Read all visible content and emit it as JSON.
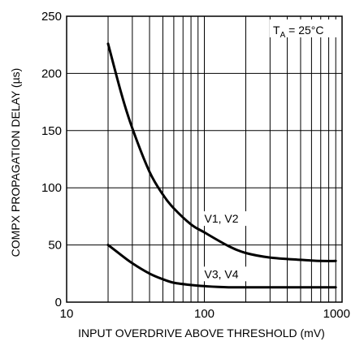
{
  "chart_data": {
    "type": "line",
    "title": "",
    "xlabel": "INPUT OVERDRIVE ABOVE THRESHOLD (mV)",
    "ylabel": "COMPX PROPAGATION DELAY (µs)",
    "xscale": "log",
    "xlim": [
      10,
      1000
    ],
    "ylim": [
      0,
      250
    ],
    "x_ticks": [
      "10",
      "100",
      "1000"
    ],
    "y_ticks": [
      "0",
      "50",
      "100",
      "150",
      "200",
      "250"
    ],
    "grid": true,
    "annotation": {
      "main": "T",
      "subscript": "A",
      "rest": " = 25°C"
    },
    "series": [
      {
        "name": "V1, V2",
        "x": [
          20,
          25,
          30,
          40,
          50,
          60,
          80,
          100,
          150,
          200,
          300,
          500,
          700,
          900
        ],
        "y": [
          226,
          182,
          152,
          114,
          94,
          82,
          68,
          61,
          49,
          43,
          39,
          37,
          36,
          36
        ]
      },
      {
        "name": "V3, V4",
        "x": [
          20,
          25,
          30,
          40,
          50,
          60,
          80,
          100,
          150,
          200,
          300,
          500,
          700,
          900
        ],
        "y": [
          50,
          41,
          34,
          25,
          20,
          17,
          15,
          14,
          13,
          13,
          13,
          13,
          13,
          13
        ]
      }
    ]
  }
}
